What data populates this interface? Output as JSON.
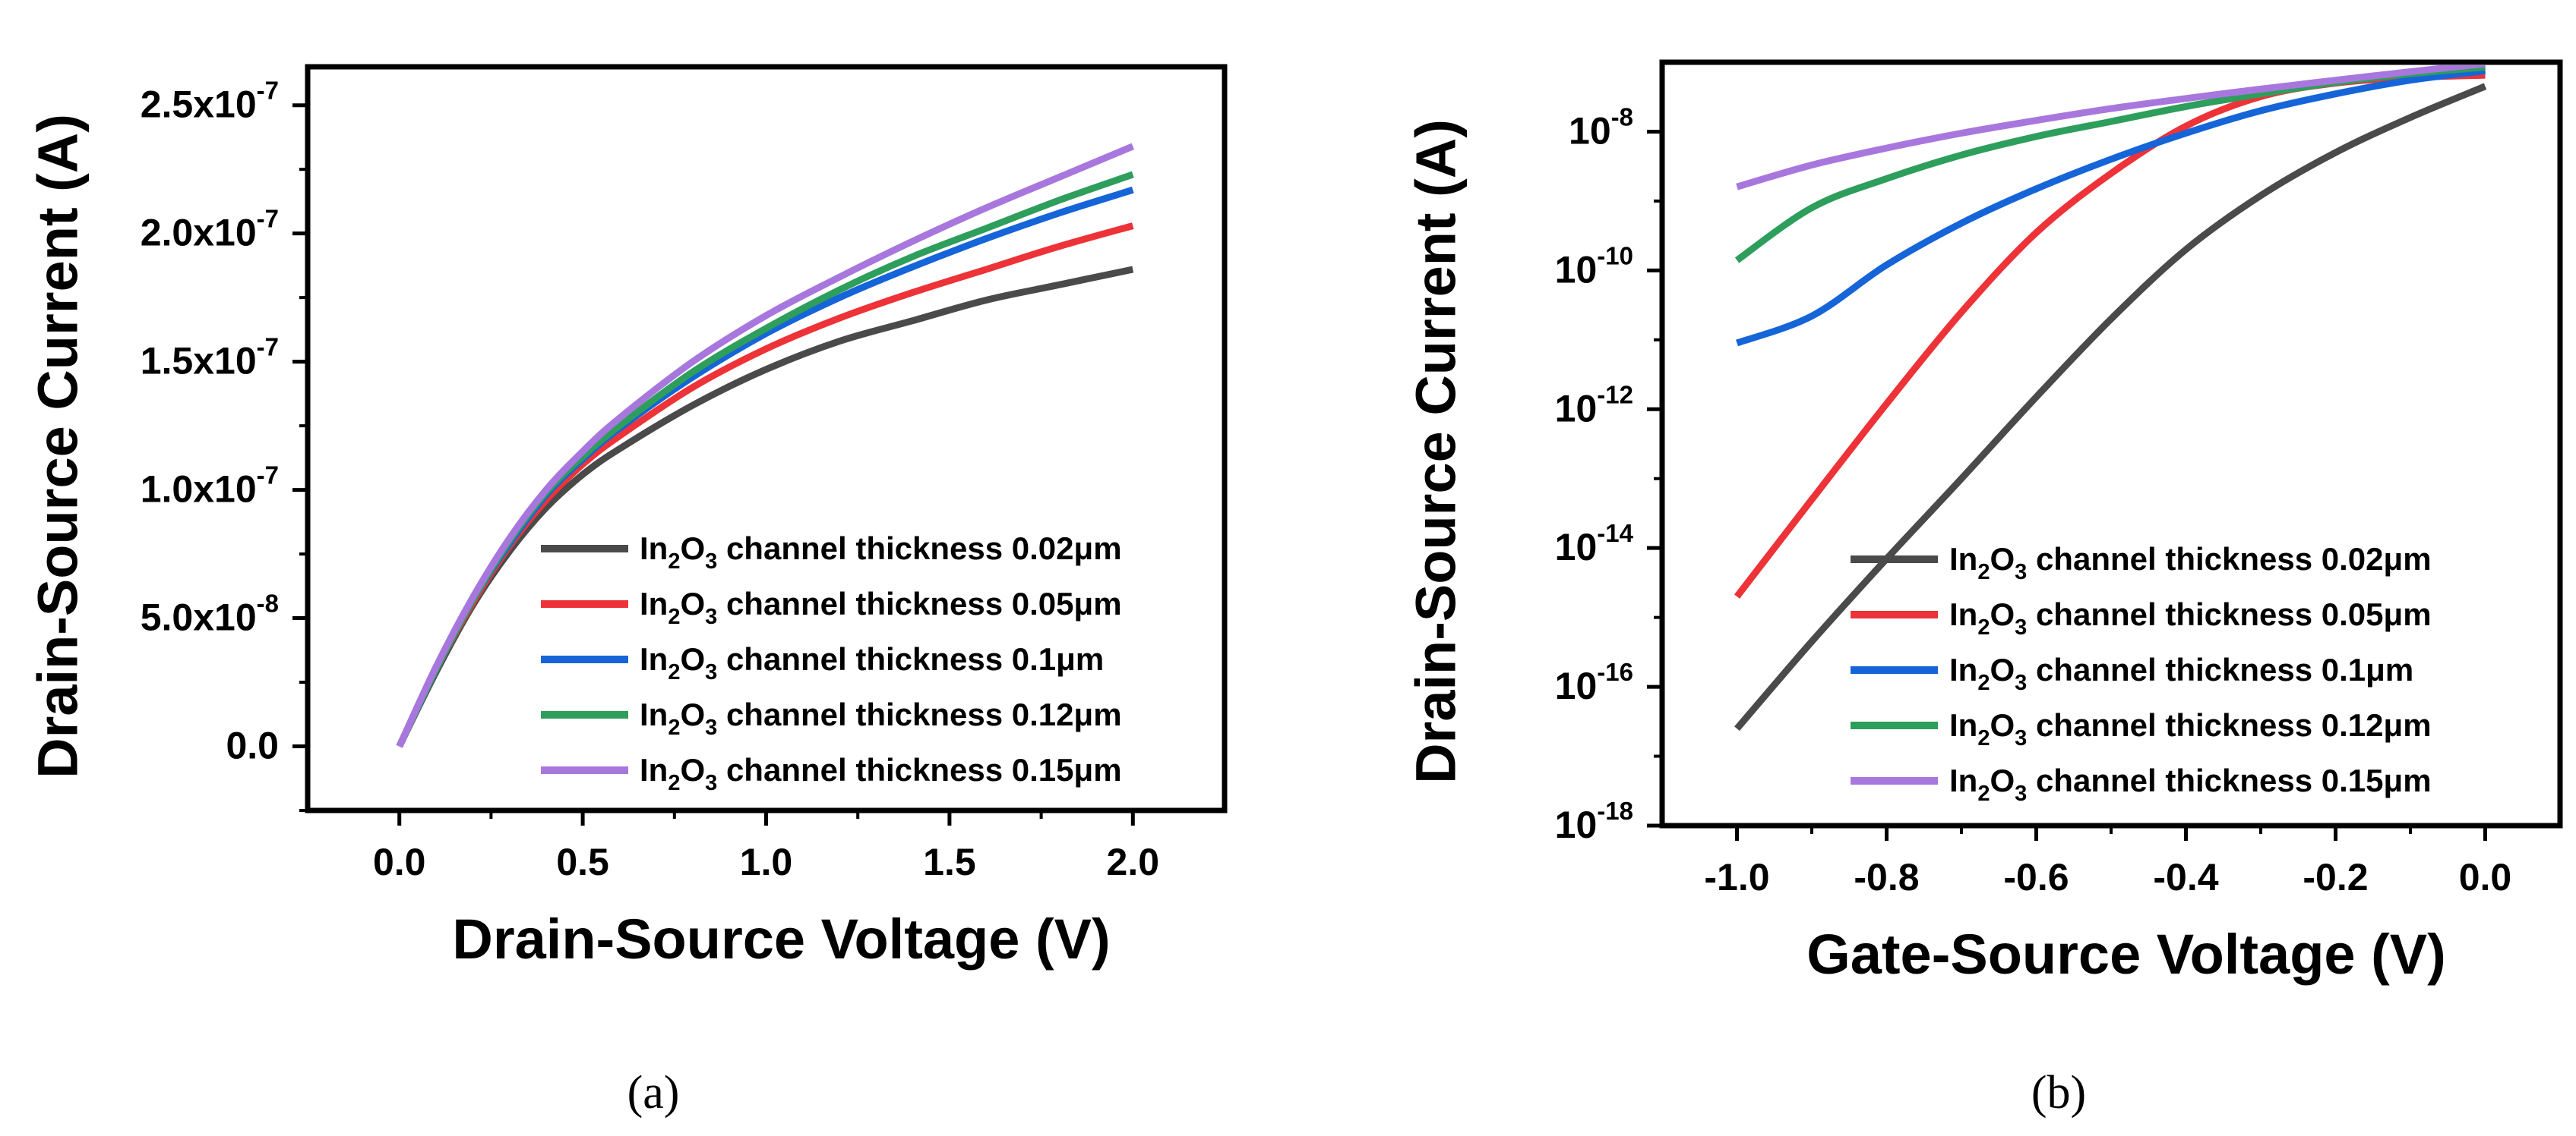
{
  "chart_data": [
    {
      "panel": "a",
      "caption": "(a)",
      "type": "line",
      "xlabel": "Drain-Source Voltage (V)",
      "ylabel": "Drain-Source Current (A)",
      "xscale": "linear",
      "yscale": "linear",
      "xlim": [
        -0.25,
        2.25
      ],
      "ylim": [
        -2.5e-08,
        2.65e-07
      ],
      "xticks": [
        0.0,
        0.5,
        1.0,
        1.5,
        2.0
      ],
      "xtick_labels": [
        "0.0",
        "0.5",
        "1.0",
        "1.5",
        "2.0"
      ],
      "yticks": [
        0.0,
        5e-08,
        1e-07,
        1.5e-07,
        2e-07,
        2.5e-07
      ],
      "ytick_labels": [
        {
          "mantissa": "0.0",
          "exp": ""
        },
        {
          "mantissa": "5.0x10",
          "exp": "-8"
        },
        {
          "mantissa": "1.0x10",
          "exp": "-7"
        },
        {
          "mantissa": "1.5x10",
          "exp": "-7"
        },
        {
          "mantissa": "2.0x10",
          "exp": "-7"
        },
        {
          "mantissa": "2.5x10",
          "exp": "-7"
        }
      ],
      "legend_position": "lower-right",
      "x": [
        0.0,
        0.1,
        0.2,
        0.3,
        0.4,
        0.5,
        0.6,
        0.8,
        1.0,
        1.2,
        1.4,
        1.6,
        1.8,
        2.0
      ],
      "series": [
        {
          "name": "0.02μm",
          "color": "#4a4a4a",
          "values": [
            0,
            2.9e-08,
            5.5e-08,
            7.6e-08,
            9.3e-08,
            1.06e-07,
            1.16e-07,
            1.33e-07,
            1.47e-07,
            1.58e-07,
            1.66e-07,
            1.74e-07,
            1.8e-07,
            1.86e-07
          ]
        },
        {
          "name": "0.05μm",
          "color": "#ed3338",
          "values": [
            0,
            3e-08,
            5.6e-08,
            7.8e-08,
            9.6e-08,
            1.1e-07,
            1.21e-07,
            1.4e-07,
            1.55e-07,
            1.67e-07,
            1.77e-07,
            1.86e-07,
            1.95e-07,
            2.03e-07
          ]
        },
        {
          "name": "0.1μm",
          "color": "#1565d8",
          "values": [
            0,
            3e-08,
            5.7e-08,
            7.9e-08,
            9.8e-08,
            1.12e-07,
            1.24e-07,
            1.44e-07,
            1.61e-07,
            1.75e-07,
            1.87e-07,
            1.98e-07,
            2.08e-07,
            2.17e-07
          ]
        },
        {
          "name": "0.12μm",
          "color": "#2e9e5c",
          "values": [
            0,
            3e-08,
            5.7e-08,
            8e-08,
            9.9e-08,
            1.13e-07,
            1.25e-07,
            1.46e-07,
            1.63e-07,
            1.78e-07,
            1.91e-07,
            2.02e-07,
            2.13e-07,
            2.23e-07
          ]
        },
        {
          "name": "0.15μm",
          "color": "#a877de",
          "values": [
            0,
            3.1e-08,
            5.8e-08,
            8.1e-08,
            1e-07,
            1.15e-07,
            1.28e-07,
            1.5e-07,
            1.68e-07,
            1.83e-07,
            1.97e-07,
            2.1e-07,
            2.22e-07,
            2.34e-07
          ]
        }
      ]
    },
    {
      "panel": "b",
      "caption": "(b)",
      "type": "line",
      "xlabel": "Gate-Source Voltage (V)",
      "ylabel": "Drain-Source Current (A)",
      "xscale": "linear",
      "yscale": "log",
      "xlim": [
        -1.1,
        0.1
      ],
      "ylim": [
        1e-18,
        1e-07
      ],
      "xticks": [
        -1.0,
        -0.8,
        -0.6,
        -0.4,
        -0.2,
        0.0
      ],
      "xtick_labels": [
        "-1.0",
        "-0.8",
        "-0.6",
        "-0.4",
        "-0.2",
        "0.0"
      ],
      "yticks": [
        1e-18,
        1e-16,
        1e-14,
        1e-12,
        1e-10,
        1e-08
      ],
      "ytick_labels": [
        {
          "mantissa": "10",
          "exp": "-18"
        },
        {
          "mantissa": "10",
          "exp": "-16"
        },
        {
          "mantissa": "10",
          "exp": "-14"
        },
        {
          "mantissa": "10",
          "exp": "-12"
        },
        {
          "mantissa": "10",
          "exp": "-10"
        },
        {
          "mantissa": "10",
          "exp": "-8"
        }
      ],
      "legend_position": "lower-right",
      "x": [
        -1.0,
        -0.9,
        -0.8,
        -0.7,
        -0.6,
        -0.5,
        -0.4,
        -0.3,
        -0.2,
        -0.1,
        0.0
      ],
      "series": [
        {
          "name": "0.02μm",
          "color": "#4a4a4a",
          "values": [
            2.5e-17,
            4.5e-16,
            7e-15,
            1e-13,
            1.5e-12,
            2e-11,
            2e-10,
            1.2e-09,
            5e-09,
            1.6e-08,
            4.5e-08
          ]
        },
        {
          "name": "0.05μm",
          "color": "#ed3338",
          "values": [
            2e-15,
            5e-14,
            1.2e-12,
            2.5e-11,
            3.5e-10,
            2.5e-09,
            1.2e-08,
            3.2e-08,
            5e-08,
            6e-08,
            6.5e-08
          ]
        },
        {
          "name": "0.1μm",
          "color": "#1565d8",
          "values": [
            9e-12,
            2.2e-11,
            1.2e-10,
            4.8e-10,
            1.5e-09,
            4e-09,
            9.5e-09,
            2e-08,
            3.5e-08,
            5.5e-08,
            7.5e-08
          ]
        },
        {
          "name": "0.12μm",
          "color": "#2e9e5c",
          "values": [
            1.4e-10,
            8e-10,
            2.1e-09,
            4.6e-09,
            8.5e-09,
            1.4e-08,
            2.3e-08,
            3.5e-08,
            5.1e-08,
            6.8e-08,
            8.5e-08
          ]
        },
        {
          "name": "0.15μm",
          "color": "#a877de",
          "values": [
            1.6e-09,
            3.3e-09,
            5.8e-09,
            9.5e-09,
            1.45e-08,
            2.15e-08,
            3e-08,
            4.1e-08,
            5.5e-08,
            7.3e-08,
            9.5e-08
          ]
        }
      ]
    }
  ],
  "legend": {
    "prefix": "In",
    "sub1": "2",
    "mid": "O",
    "sub2": "3",
    "text": " channel thickness ",
    "entries": [
      "0.02μm",
      "0.05μm",
      "0.1μm",
      "0.12μm",
      "0.15μm"
    ]
  }
}
